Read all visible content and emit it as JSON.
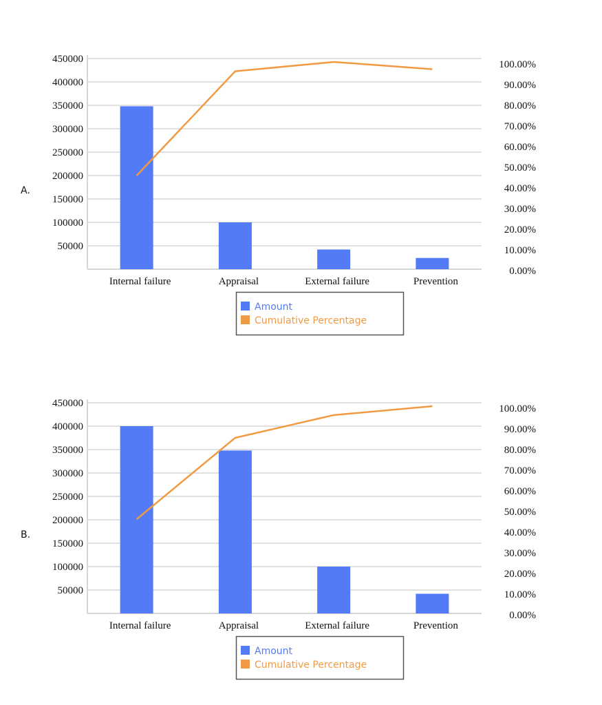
{
  "colors": {
    "bar": "#527bf5",
    "line": "#f19a44",
    "grid": "#d6d6d6",
    "legend_border": "#555555"
  },
  "chart_data": [
    {
      "label": "A.",
      "type": "bar+line",
      "categories": [
        "Internal failure",
        "Appraisal",
        "External failure",
        "Prevention"
      ],
      "series": [
        {
          "name": "Amount",
          "type": "bar",
          "axis": "left",
          "values": [
            348000,
            100000,
            42000,
            24000
          ]
        },
        {
          "name": "Cumulative Percentage",
          "type": "line",
          "axis": "right",
          "values": [
            46.0,
            96.5,
            101.0,
            97.5
          ]
        }
      ],
      "y_left": {
        "ticks": [
          "50000",
          "100000",
          "150000",
          "200000",
          "250000",
          "300000",
          "350000",
          "400000",
          "450000"
        ],
        "range": [
          0,
          450000
        ]
      },
      "y_right": {
        "ticks": [
          "0.00%",
          "10.00%",
          "20.00%",
          "30.00%",
          "40.00%",
          "50.00%",
          "60.00%",
          "70.00%",
          "80.00%",
          "90.00%",
          "100.00%"
        ],
        "range": [
          0,
          100
        ]
      },
      "grid": true,
      "legend_position": "bottom"
    },
    {
      "label": "B.",
      "type": "bar+line",
      "categories": [
        "Internal failure",
        "Appraisal",
        "External failure",
        "Prevention"
      ],
      "series": [
        {
          "name": "Amount",
          "type": "bar",
          "axis": "left",
          "values": [
            400000,
            348000,
            100000,
            42000
          ]
        },
        {
          "name": "Cumulative Percentage",
          "type": "line",
          "axis": "right",
          "values": [
            46.3,
            85.7,
            96.7,
            101.0
          ]
        }
      ],
      "y_left": {
        "ticks": [
          "50000",
          "100000",
          "150000",
          "200000",
          "250000",
          "300000",
          "350000",
          "400000",
          "450000"
        ],
        "range": [
          0,
          450000
        ]
      },
      "y_right": {
        "ticks": [
          "0.00%",
          "10.00%",
          "20.00%",
          "30.00%",
          "40.00%",
          "50.00%",
          "60.00%",
          "70.00%",
          "80.00%",
          "90.00%",
          "100.00%"
        ],
        "range": [
          0,
          100
        ]
      },
      "grid": true,
      "legend_position": "bottom"
    }
  ]
}
